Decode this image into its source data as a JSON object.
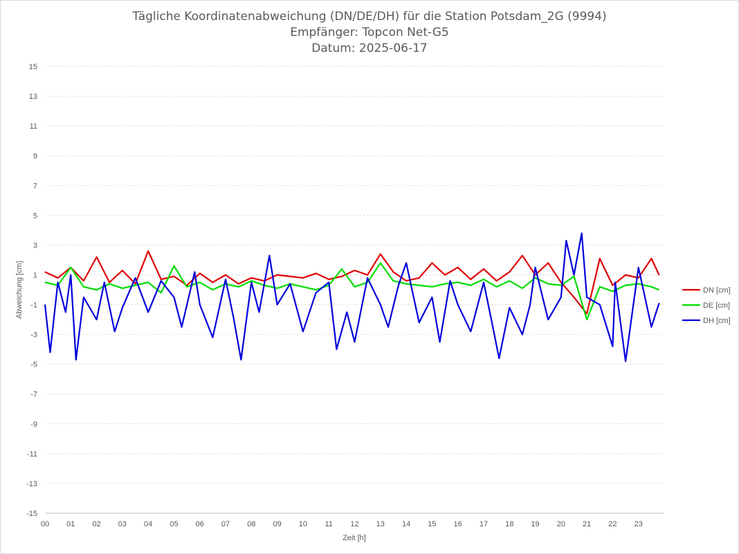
{
  "chart_data": {
    "type": "line",
    "title": [
      "Tägliche Koordinatenabweichung (DN/DE/DH) für die Station Potsdam_2G (9994)",
      "Empfänger: Topcon Net-G5",
      "Datum: 2025-06-17"
    ],
    "xlabel": "Zeit [h]",
    "ylabel": "Abweichung [cm]",
    "xlim": [
      0,
      24
    ],
    "ylim": [
      -15,
      15
    ],
    "xticks": [
      "00",
      "01",
      "02",
      "03",
      "04",
      "05",
      "06",
      "07",
      "08",
      "09",
      "10",
      "11",
      "12",
      "13",
      "14",
      "15",
      "16",
      "17",
      "18",
      "19",
      "20",
      "21",
      "22",
      "23"
    ],
    "yticks": [
      15,
      13,
      11,
      9,
      7,
      5,
      3,
      1,
      -1,
      -3,
      -5,
      -7,
      -9,
      -11,
      -13,
      -15
    ],
    "grid": "horizontal dotted",
    "legend_position": "right",
    "series": [
      {
        "name": "DN [cm]",
        "color": "#e00000",
        "x": [
          0,
          0.5,
          1,
          1.5,
          2,
          2.5,
          3,
          3.5,
          4,
          4.5,
          5,
          5.5,
          6,
          6.5,
          7,
          7.5,
          8,
          8.5,
          9,
          9.5,
          10,
          10.5,
          11,
          11.5,
          12,
          12.5,
          13,
          13.5,
          14,
          14.5,
          15,
          15.5,
          16,
          16.5,
          17,
          17.5,
          18,
          18.5,
          19,
          19.5,
          20,
          20.5,
          21,
          21.5,
          22,
          22.5,
          23,
          23.5,
          23.8
        ],
        "y": [
          1.2,
          0.8,
          1.5,
          0.6,
          2.2,
          0.5,
          1.3,
          0.4,
          2.6,
          0.7,
          0.9,
          0.3,
          1.1,
          0.5,
          1.0,
          0.4,
          0.8,
          0.6,
          1.0,
          0.9,
          0.8,
          1.1,
          0.7,
          0.9,
          1.3,
          1.0,
          2.4,
          1.2,
          0.6,
          0.8,
          1.8,
          1.0,
          1.5,
          0.7,
          1.4,
          0.6,
          1.2,
          2.3,
          1.0,
          1.8,
          0.5,
          -0.5,
          -1.6,
          2.1,
          0.3,
          1.0,
          0.8,
          2.1,
          1.0
        ]
      },
      {
        "name": "DE [cm]",
        "color": "#00dd00",
        "x": [
          0,
          0.5,
          1,
          1.5,
          2,
          2.5,
          3,
          3.5,
          4,
          4.5,
          5,
          5.5,
          6,
          6.5,
          7,
          7.5,
          8,
          8.5,
          9,
          9.5,
          10,
          10.5,
          11,
          11.5,
          12,
          12.5,
          13,
          13.5,
          14,
          14.5,
          15,
          15.5,
          16,
          16.5,
          17,
          17.5,
          18,
          18.5,
          19,
          19.5,
          20,
          20.5,
          21,
          21.5,
          22,
          22.5,
          23,
          23.5,
          23.8
        ],
        "y": [
          0.5,
          0.3,
          1.5,
          0.2,
          0.0,
          0.4,
          0.1,
          0.3,
          0.5,
          -0.2,
          1.6,
          0.2,
          0.5,
          0.0,
          0.4,
          0.2,
          0.6,
          0.3,
          0.1,
          0.4,
          0.2,
          0.0,
          0.3,
          1.4,
          0.2,
          0.5,
          1.8,
          0.6,
          0.4,
          0.3,
          0.2,
          0.4,
          0.5,
          0.3,
          0.7,
          0.2,
          0.6,
          0.1,
          0.8,
          0.4,
          0.3,
          0.9,
          -2.0,
          0.2,
          -0.1,
          0.3,
          0.4,
          0.2,
          0.0
        ]
      },
      {
        "name": "DH [cm]",
        "color": "#0000dd",
        "x": [
          0,
          0.2,
          0.5,
          0.8,
          1.0,
          1.2,
          1.5,
          2.0,
          2.3,
          2.7,
          3.0,
          3.5,
          4.0,
          4.5,
          5.0,
          5.3,
          5.8,
          6.0,
          6.5,
          7.0,
          7.3,
          7.6,
          8.0,
          8.3,
          8.7,
          9.0,
          9.5,
          10.0,
          10.5,
          11.0,
          11.3,
          11.7,
          12.0,
          12.5,
          13.0,
          13.3,
          13.7,
          14.0,
          14.5,
          15.0,
          15.3,
          15.7,
          16.0,
          16.5,
          17.0,
          17.3,
          17.6,
          18.0,
          18.5,
          18.8,
          19.0,
          19.5,
          20.0,
          20.2,
          20.5,
          20.8,
          21.0,
          21.5,
          22.0,
          22.1,
          22.5,
          23.0,
          23.5,
          23.8
        ],
        "y": [
          -1.0,
          -4.2,
          0.5,
          -1.5,
          1.0,
          -4.7,
          -0.5,
          -2.0,
          0.5,
          -2.8,
          -1.2,
          0.8,
          -1.5,
          0.6,
          -0.5,
          -2.5,
          1.2,
          -1.0,
          -3.2,
          0.7,
          -1.8,
          -4.7,
          0.5,
          -1.5,
          2.3,
          -1.0,
          0.4,
          -2.8,
          -0.2,
          0.5,
          -4.0,
          -1.5,
          -3.5,
          0.8,
          -1.0,
          -2.5,
          0.3,
          1.8,
          -2.2,
          -0.5,
          -3.5,
          0.6,
          -1.0,
          -2.8,
          0.5,
          -2.0,
          -4.6,
          -1.2,
          -3.0,
          -1.0,
          1.5,
          -2.0,
          -0.5,
          3.3,
          1.0,
          3.8,
          -0.5,
          -1.0,
          -3.8,
          0.5,
          -4.8,
          1.5,
          -2.5,
          -0.9
        ]
      }
    ]
  }
}
